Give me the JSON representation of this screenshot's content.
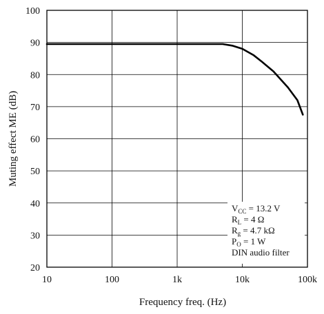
{
  "chart_data": {
    "type": "line",
    "title": "",
    "xlabel": "Frequency   freq. (Hz)",
    "ylabel": "Muting effect  ME (dB)",
    "x_scale": "log",
    "xlim": [
      10,
      100000
    ],
    "ylim": [
      20,
      100
    ],
    "grid": true,
    "x_ticks": [
      10,
      100,
      1000,
      10000,
      100000
    ],
    "x_tick_labels": [
      "10",
      "100",
      "1k",
      "10k",
      "100k"
    ],
    "y_ticks": [
      20,
      30,
      40,
      50,
      60,
      70,
      80,
      90,
      100
    ],
    "y_tick_labels": [
      "20",
      "30",
      "40",
      "50",
      "60",
      "70",
      "80",
      "90",
      "100"
    ],
    "series": [
      {
        "x": [
          10,
          100,
          1000,
          5000,
          7000,
          10000,
          15000,
          20000,
          30000,
          50000,
          70000,
          85000
        ],
        "values": [
          89.5,
          89.5,
          89.5,
          89.5,
          89.0,
          88.0,
          86.0,
          84.0,
          81.0,
          76.0,
          72.0,
          67.5
        ],
        "color": "#000000"
      }
    ],
    "annotation": {
      "lines": [
        {
          "main": "V",
          "sub": "CC",
          "rest": " = 13.2 V"
        },
        {
          "main": "R",
          "sub": "L",
          "rest": " = 4 Ω"
        },
        {
          "main": "R",
          "sub": "g",
          "rest": " = 4.7 kΩ"
        },
        {
          "main": "P",
          "sub": "O",
          "rest": " = 1 W"
        },
        {
          "main": "DIN audio filter",
          "sub": "",
          "rest": ""
        }
      ]
    }
  }
}
